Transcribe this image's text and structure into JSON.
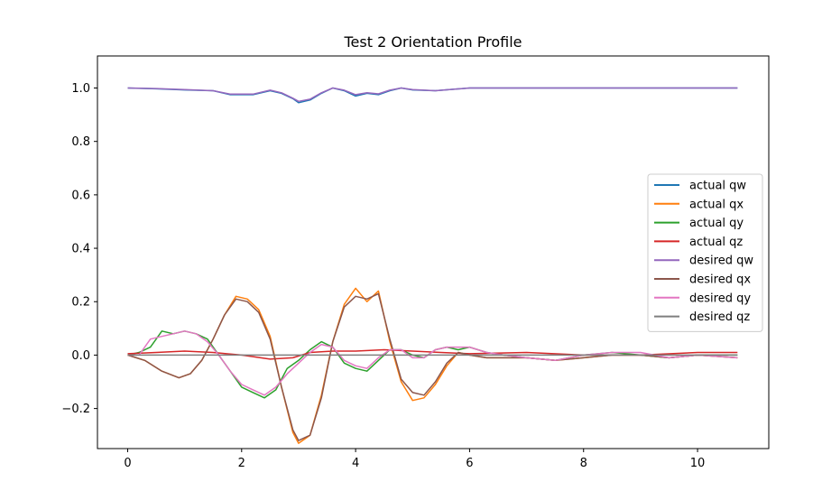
{
  "chart_data": {
    "type": "line",
    "title": "Test 2 Orientation Profile",
    "xlabel": "",
    "ylabel": "",
    "xlim": [
      -0.53,
      11.25
    ],
    "ylim": [
      -0.35,
      1.12
    ],
    "xticks": [
      0,
      2,
      4,
      6,
      8,
      10
    ],
    "xtick_labels": [
      "0",
      "2",
      "4",
      "6",
      "8",
      "10"
    ],
    "yticks": [
      -0.2,
      0.0,
      0.2,
      0.4,
      0.6,
      0.8,
      1.0
    ],
    "ytick_labels": [
      "−0.2",
      "0.0",
      "0.2",
      "0.4",
      "0.6",
      "0.8",
      "1.0"
    ],
    "grid": false,
    "legend_position": "center-right",
    "series": [
      {
        "name": "actual qw",
        "color": "#1f77b4",
        "x": [
          0,
          0.5,
          1.0,
          1.5,
          1.8,
          2.2,
          2.5,
          2.7,
          2.9,
          3.0,
          3.2,
          3.4,
          3.6,
          3.8,
          4.0,
          4.2,
          4.4,
          4.6,
          4.8,
          5.0,
          5.4,
          6.0,
          7.0,
          8.0,
          9.0,
          10.0,
          10.7
        ],
        "y": [
          1.0,
          0.997,
          0.993,
          0.99,
          0.975,
          0.975,
          0.99,
          0.98,
          0.96,
          0.945,
          0.955,
          0.98,
          1.0,
          0.99,
          0.97,
          0.98,
          0.975,
          0.99,
          1.0,
          0.993,
          0.99,
          1.0,
          1.0,
          1.0,
          1.0,
          1.0,
          1.0
        ]
      },
      {
        "name": "actual qx",
        "color": "#ff7f0e",
        "x": [
          0,
          0.3,
          0.6,
          0.9,
          1.1,
          1.3,
          1.5,
          1.7,
          1.9,
          2.1,
          2.3,
          2.5,
          2.7,
          2.9,
          3.0,
          3.2,
          3.4,
          3.6,
          3.8,
          4.0,
          4.2,
          4.4,
          4.6,
          4.8,
          5.0,
          5.2,
          5.4,
          5.6,
          5.8,
          6.0,
          6.3,
          6.6,
          7.0,
          7.5,
          8.0,
          8.5,
          9.0,
          9.5,
          10.0,
          10.7
        ],
        "y": [
          0.0,
          -0.02,
          -0.06,
          -0.085,
          -0.07,
          -0.02,
          0.06,
          0.15,
          0.22,
          0.21,
          0.17,
          0.07,
          -0.12,
          -0.29,
          -0.33,
          -0.3,
          -0.15,
          0.05,
          0.19,
          0.25,
          0.2,
          0.24,
          0.05,
          -0.1,
          -0.17,
          -0.16,
          -0.11,
          -0.04,
          0.01,
          0.0,
          -0.01,
          -0.01,
          -0.01,
          -0.02,
          -0.01,
          0.0,
          0.0,
          -0.01,
          0.0,
          -0.01
        ]
      },
      {
        "name": "actual qy",
        "color": "#2ca02c",
        "x": [
          0,
          0.2,
          0.4,
          0.6,
          0.8,
          1.0,
          1.2,
          1.4,
          1.6,
          1.8,
          2.0,
          2.2,
          2.4,
          2.6,
          2.8,
          3.0,
          3.2,
          3.4,
          3.6,
          3.8,
          4.0,
          4.2,
          4.4,
          4.6,
          4.8,
          5.0,
          5.2,
          5.4,
          5.6,
          5.8,
          6.0,
          6.3,
          6.6,
          7.0,
          7.5,
          8.0,
          8.5,
          9.0,
          9.5,
          10.0,
          10.7
        ],
        "y": [
          0.0,
          0.01,
          0.03,
          0.09,
          0.08,
          0.09,
          0.08,
          0.06,
          0.0,
          -0.06,
          -0.12,
          -0.14,
          -0.16,
          -0.13,
          -0.05,
          -0.02,
          0.02,
          0.05,
          0.03,
          -0.03,
          -0.05,
          -0.06,
          -0.02,
          0.02,
          0.02,
          0.0,
          -0.01,
          0.02,
          0.03,
          0.02,
          0.03,
          0.01,
          0.0,
          -0.01,
          -0.02,
          0.0,
          0.01,
          0.0,
          -0.01,
          0.0,
          0.0
        ]
      },
      {
        "name": "actual qz",
        "color": "#d62728",
        "x": [
          0,
          0.5,
          1.0,
          1.5,
          2.0,
          2.5,
          2.9,
          3.2,
          3.6,
          4.0,
          4.5,
          5.0,
          5.5,
          6.0,
          7.0,
          8.0,
          9.0,
          10.0,
          10.7
        ],
        "y": [
          0.005,
          0.01,
          0.015,
          0.01,
          0.0,
          -0.015,
          -0.01,
          0.01,
          0.015,
          0.015,
          0.02,
          0.015,
          0.01,
          0.005,
          0.01,
          0.0,
          0.0,
          0.01,
          0.01
        ]
      },
      {
        "name": "desired qw",
        "color": "#9467bd",
        "x": [
          0,
          0.5,
          1.0,
          1.5,
          1.8,
          2.2,
          2.5,
          2.7,
          2.9,
          3.0,
          3.2,
          3.4,
          3.6,
          3.8,
          4.0,
          4.2,
          4.4,
          4.6,
          4.8,
          5.0,
          5.4,
          6.0,
          7.0,
          8.0,
          9.0,
          10.0,
          10.7
        ],
        "y": [
          1.0,
          0.998,
          0.994,
          0.99,
          0.977,
          0.977,
          0.992,
          0.982,
          0.962,
          0.95,
          0.958,
          0.982,
          1.0,
          0.992,
          0.975,
          0.982,
          0.978,
          0.992,
          1.0,
          0.994,
          0.99,
          1.0,
          1.0,
          1.0,
          1.0,
          1.0,
          1.0
        ]
      },
      {
        "name": "desired qx",
        "color": "#8c564b",
        "x": [
          0,
          0.3,
          0.6,
          0.9,
          1.1,
          1.3,
          1.5,
          1.7,
          1.9,
          2.1,
          2.3,
          2.5,
          2.7,
          2.9,
          3.0,
          3.2,
          3.4,
          3.6,
          3.8,
          4.0,
          4.2,
          4.4,
          4.6,
          4.8,
          5.0,
          5.2,
          5.4,
          5.6,
          5.8,
          6.0,
          6.3,
          6.6,
          7.0,
          7.5,
          8.0,
          8.5,
          9.0,
          9.5,
          10.0,
          10.7
        ],
        "y": [
          0.0,
          -0.02,
          -0.06,
          -0.085,
          -0.07,
          -0.02,
          0.06,
          0.15,
          0.21,
          0.2,
          0.16,
          0.06,
          -0.12,
          -0.28,
          -0.32,
          -0.3,
          -0.16,
          0.05,
          0.18,
          0.22,
          0.21,
          0.23,
          0.06,
          -0.09,
          -0.14,
          -0.15,
          -0.1,
          -0.03,
          0.01,
          0.0,
          -0.01,
          -0.01,
          -0.01,
          -0.02,
          -0.01,
          0.0,
          0.0,
          -0.01,
          0.0,
          -0.01
        ]
      },
      {
        "name": "desired qy",
        "color": "#e377c2",
        "x": [
          0,
          0.2,
          0.4,
          0.6,
          0.8,
          1.0,
          1.2,
          1.4,
          1.6,
          1.8,
          2.0,
          2.2,
          2.4,
          2.6,
          2.8,
          3.0,
          3.2,
          3.4,
          3.6,
          3.8,
          4.0,
          4.2,
          4.4,
          4.6,
          4.8,
          5.0,
          5.2,
          5.4,
          5.6,
          5.8,
          6.0,
          6.3,
          6.6,
          7.0,
          7.5,
          8.0,
          8.5,
          9.0,
          9.5,
          10.0,
          10.7
        ],
        "y": [
          0.0,
          0.0,
          0.06,
          0.07,
          0.08,
          0.09,
          0.08,
          0.05,
          0.0,
          -0.06,
          -0.11,
          -0.13,
          -0.15,
          -0.12,
          -0.07,
          -0.03,
          0.01,
          0.04,
          0.03,
          -0.02,
          -0.04,
          -0.05,
          -0.01,
          0.02,
          0.02,
          -0.01,
          -0.01,
          0.02,
          0.03,
          0.03,
          0.03,
          0.01,
          0.0,
          -0.01,
          -0.02,
          0.0,
          0.01,
          0.01,
          -0.01,
          0.0,
          -0.01
        ]
      },
      {
        "name": "desired qz",
        "color": "#7f7f7f",
        "x": [
          0,
          10.7
        ],
        "y": [
          0.0,
          0.0
        ]
      }
    ]
  }
}
